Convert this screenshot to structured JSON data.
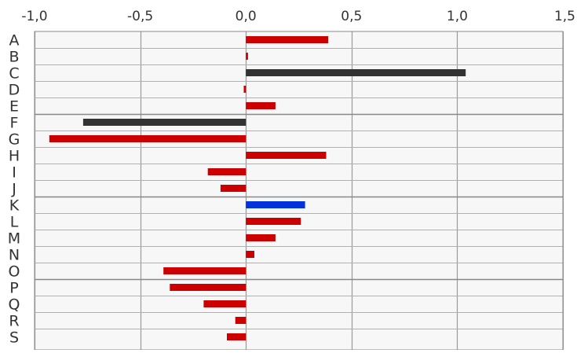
{
  "chart_data": {
    "type": "bar",
    "orientation": "horizontal",
    "categories": [
      "A",
      "B",
      "C",
      "D",
      "E",
      "F",
      "G",
      "H",
      "I",
      "J",
      "K",
      "L",
      "M",
      "N",
      "O",
      "P",
      "Q",
      "R",
      "S"
    ],
    "values": [
      0.39,
      0.01,
      1.04,
      -0.01,
      0.14,
      -0.77,
      -0.93,
      0.38,
      -0.18,
      -0.12,
      0.28,
      0.26,
      0.14,
      0.04,
      -0.39,
      -0.36,
      -0.2,
      -0.05,
      -0.09
    ],
    "bar_colors": [
      "#cc0000",
      "#cc0000",
      "#333333",
      "#cc0000",
      "#cc0000",
      "#333333",
      "#cc0000",
      "#cc0000",
      "#cc0000",
      "#cc0000",
      "#0033dd",
      "#cc0000",
      "#cc0000",
      "#cc0000",
      "#cc0000",
      "#cc0000",
      "#cc0000",
      "#cc0000",
      "#cc0000"
    ],
    "xlim": [
      -1.0,
      1.5
    ],
    "x_ticks": [
      -1.0,
      -0.5,
      0.0,
      0.5,
      1.0,
      1.5
    ],
    "x_tick_labels": [
      "-1,0",
      "-0,5",
      "0,0",
      "0,5",
      "1,0",
      "1,5"
    ],
    "x_axis_position": "top",
    "grid": true,
    "title": "",
    "xlabel": "",
    "ylabel": ""
  }
}
